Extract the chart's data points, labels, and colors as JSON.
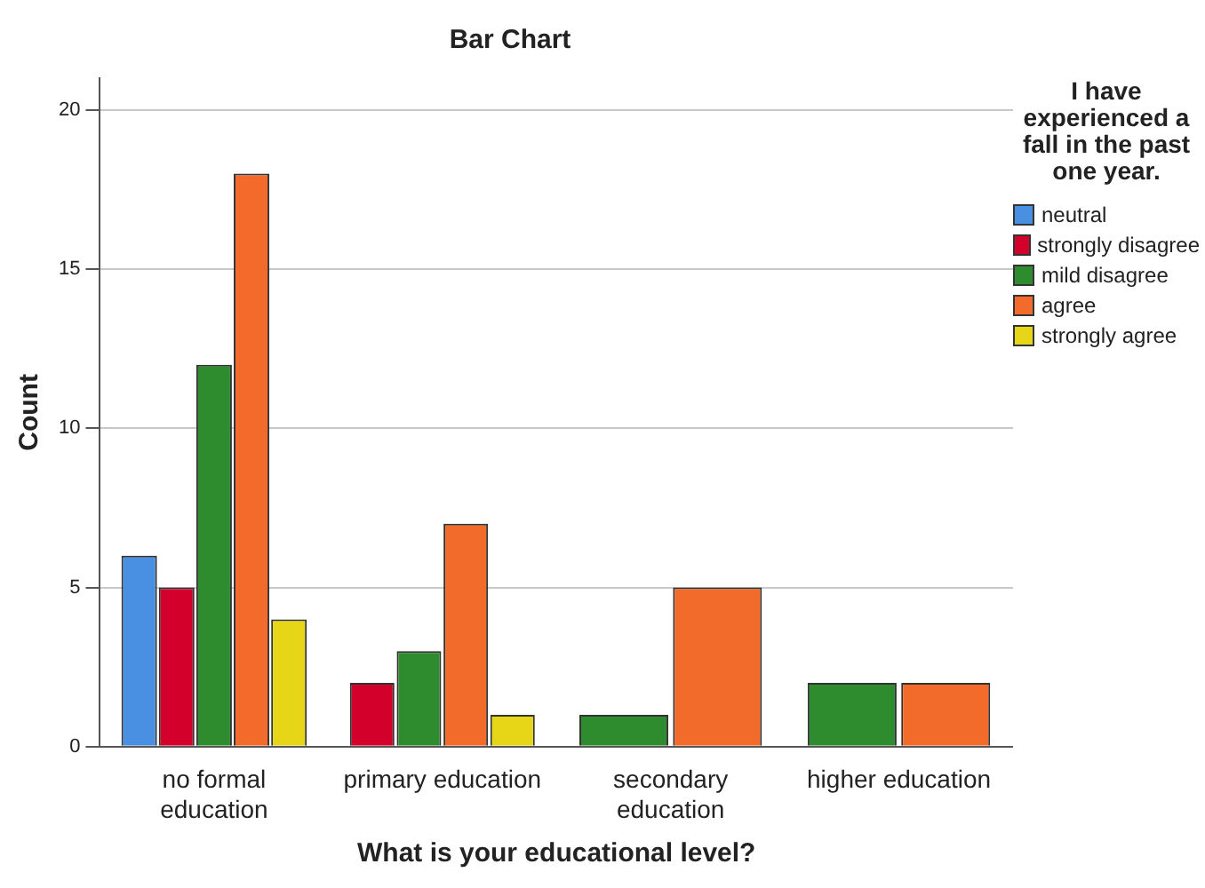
{
  "chart_data": {
    "type": "bar",
    "title": "Bar Chart",
    "xlabel": "What is your educational level?",
    "ylabel": "Count",
    "legend_title": "I have experienced a fall in the past one year.",
    "legend": "right",
    "grid": "y",
    "categories": [
      "no formal education",
      "primary education",
      "secondary education",
      "higher education"
    ],
    "series": [
      {
        "name": "neutral",
        "color": "#4a90e2",
        "values": [
          6,
          null,
          null,
          null
        ]
      },
      {
        "name": "strongly disagree",
        "color": "#d2002a",
        "values": [
          5,
          2,
          null,
          null
        ]
      },
      {
        "name": "mild disagree",
        "color": "#2e8b2e",
        "values": [
          12,
          3,
          1,
          2
        ]
      },
      {
        "name": "agree",
        "color": "#f26b2a",
        "values": [
          18,
          7,
          5,
          2
        ]
      },
      {
        "name": "strongly agree",
        "color": "#e6d617",
        "values": [
          4,
          1,
          null,
          null
        ]
      }
    ],
    "ylim": [
      0,
      21
    ],
    "yticks": [
      0,
      5,
      10,
      15,
      20
    ]
  }
}
